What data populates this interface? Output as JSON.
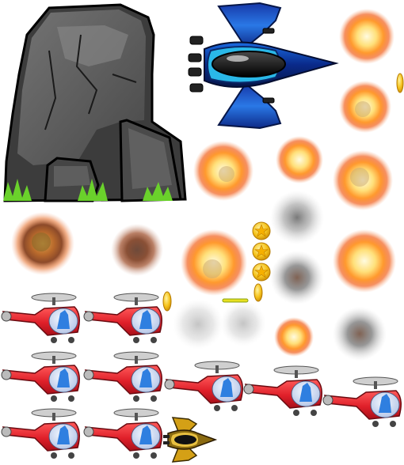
{
  "sheet": {
    "background": "#ffffff"
  },
  "colors": {
    "rock_dark": "#3f3f3f",
    "rock_mid": "#5e5e5e",
    "rock_light": "#7a7a7a",
    "grass": "#6ad12b",
    "ship_blue": "#1a4fd6",
    "ship_cyan": "#2ab8e8",
    "ship_dark": "#0b1c5a",
    "explosion_core": "#fff6c8",
    "explosion_mid": "#ffb03a",
    "explosion_edge": "#e8571a",
    "smoke": "#8a8a8a",
    "coin": "#f6c21c",
    "heli_red": "#e0202a",
    "heli_pilot": "#2f7fe0",
    "enemy_gold": "#c89a1a"
  },
  "sprites": {
    "rock": "rock-sprite",
    "ship": "blue-spaceship-sprite",
    "explosion": "explosion-sprite",
    "smoke": "smoke-puff-sprite",
    "coin": "gold-star-coin-sprite",
    "helicopter": "red-helicopter-sprite",
    "enemy_ship": "gold-enemy-ship-sprite"
  }
}
